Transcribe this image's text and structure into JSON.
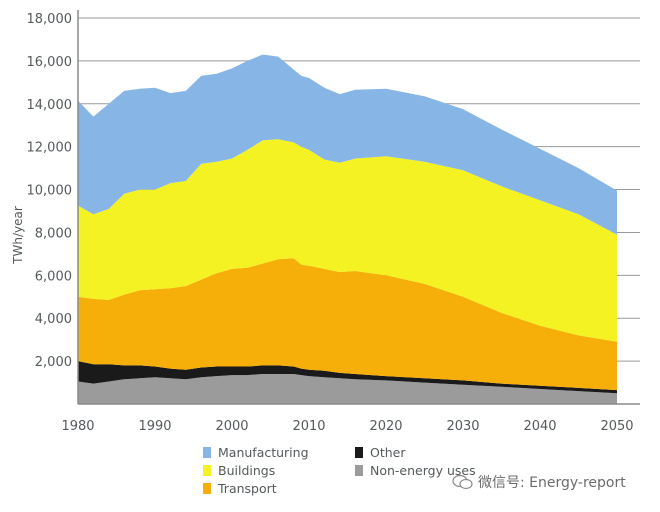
{
  "chart_data": {
    "type": "area",
    "stacked": true,
    "title": "",
    "xlabel": "",
    "ylabel": "TWh/year",
    "xlim": [
      1980,
      2050
    ],
    "ylim": [
      0,
      18000
    ],
    "grid": "horizontal",
    "x_ticks": [
      "1980",
      "1990",
      "2000",
      "2010",
      "2020",
      "2030",
      "2040",
      "2050"
    ],
    "y_ticks": [
      "2,000",
      "4,000",
      "6,000",
      "8,000",
      "10,000",
      "12,000",
      "14,000",
      "16,000",
      "18,000"
    ],
    "legend_position": "bottom",
    "x": [
      1980,
      1982,
      1984,
      1986,
      1988,
      1990,
      1992,
      1994,
      1996,
      1998,
      2000,
      2002,
      2004,
      2006,
      2008,
      2009,
      2010,
      2012,
      2014,
      2016,
      2020,
      2025,
      2030,
      2035,
      2040,
      2045,
      2050
    ],
    "series": [
      {
        "name": "Non-energy uses",
        "color": "#9b9b9b",
        "values": [
          1050,
          950,
          1050,
          1150,
          1200,
          1250,
          1200,
          1150,
          1250,
          1300,
          1350,
          1350,
          1400,
          1400,
          1400,
          1350,
          1300,
          1250,
          1200,
          1150,
          1100,
          1000,
          900,
          800,
          700,
          600,
          500
        ]
      },
      {
        "name": "Other",
        "color": "#1a1a1a",
        "values": [
          950,
          900,
          800,
          650,
          600,
          500,
          450,
          450,
          450,
          450,
          400,
          400,
          400,
          400,
          350,
          300,
          300,
          300,
          250,
          250,
          200,
          200,
          200,
          150,
          150,
          150,
          150
        ]
      },
      {
        "name": "Transport",
        "color": "#f6ae09",
        "values": [
          3000,
          3050,
          3000,
          3300,
          3500,
          3600,
          3750,
          3900,
          4100,
          4350,
          4550,
          4600,
          4750,
          4950,
          5050,
          4850,
          4850,
          4750,
          4700,
          4800,
          4700,
          4400,
          3900,
          3300,
          2800,
          2450,
          2250
        ]
      },
      {
        "name": "Buildings",
        "color": "#f4f223",
        "values": [
          4250,
          3950,
          4250,
          4700,
          4700,
          4650,
          4900,
          4900,
          5400,
          5200,
          5150,
          5500,
          5750,
          5600,
          5400,
          5500,
          5400,
          5100,
          5100,
          5250,
          5550,
          5700,
          5900,
          5900,
          5850,
          5650,
          5000
        ]
      },
      {
        "name": "Manufacturing",
        "color": "#87b6e6",
        "values": [
          4900,
          4550,
          4900,
          4800,
          4700,
          4750,
          4200,
          4200,
          4100,
          4100,
          4200,
          4150,
          4000,
          3850,
          3400,
          3300,
          3350,
          3350,
          3200,
          3200,
          3150,
          3050,
          2850,
          2650,
          2400,
          2150,
          2050
        ]
      }
    ]
  },
  "legend": {
    "items": [
      {
        "label": "Manufacturing",
        "color": "#87b6e6"
      },
      {
        "label": "Buildings",
        "color": "#f4f223"
      },
      {
        "label": "Transport",
        "color": "#f6ae09"
      },
      {
        "label": "Other",
        "color": "#1a1a1a"
      },
      {
        "label": "Non-energy uses",
        "color": "#9b9b9b"
      }
    ]
  },
  "watermark": {
    "text": "微信号: Energy-report"
  }
}
